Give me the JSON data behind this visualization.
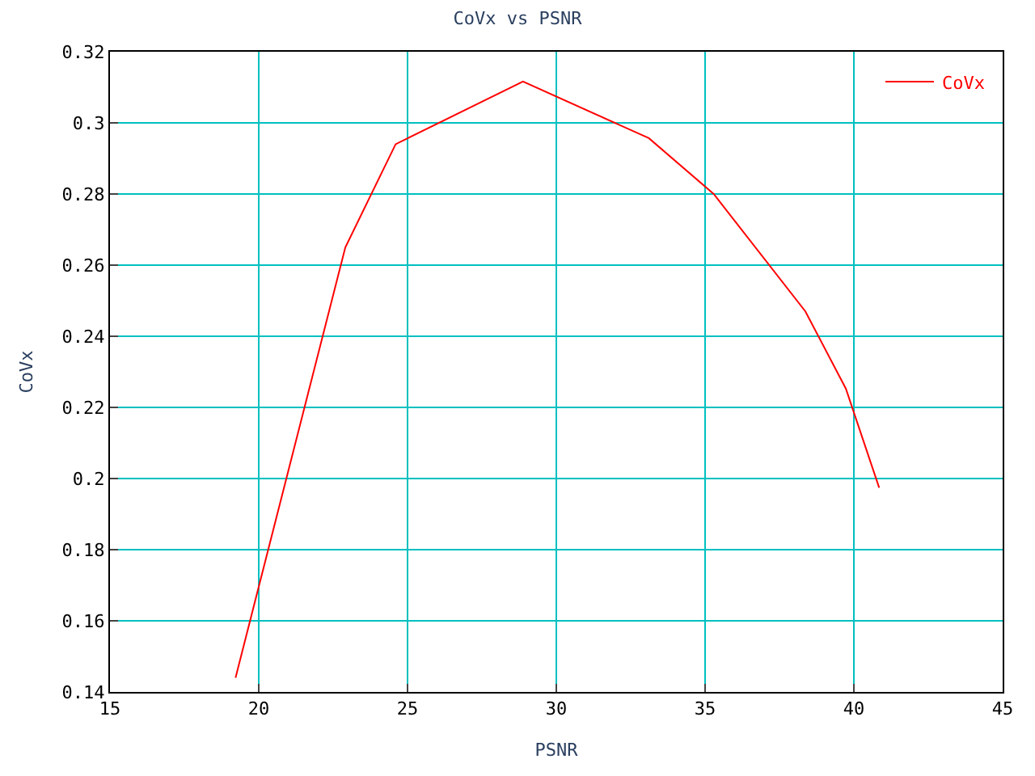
{
  "chart_data": {
    "type": "line",
    "title": "CoVx vs PSNR",
    "xlabel": "PSNR",
    "ylabel": "CoVx",
    "x": [
      19.22,
      22.91,
      24.6,
      28.88,
      33.11,
      35.29,
      38.37,
      39.73,
      40.85
    ],
    "series": [
      {
        "name": "CoVx",
        "color": "#ff0000",
        "values": [
          0.144,
          0.265,
          0.294,
          0.3116,
          0.2957,
          0.28,
          0.247,
          0.2253,
          0.1974
        ]
      }
    ],
    "xlim": [
      15,
      45
    ],
    "xticks": [
      15,
      20,
      25,
      30,
      35,
      40,
      45
    ],
    "ylim": [
      0.14,
      0.32
    ],
    "yticks": [
      0.14,
      0.16,
      0.18,
      0.2,
      0.22,
      0.24,
      0.26,
      0.28,
      0.3,
      0.32
    ],
    "grid": true,
    "legend": "top right",
    "marker": "none",
    "line_style": "solid"
  }
}
